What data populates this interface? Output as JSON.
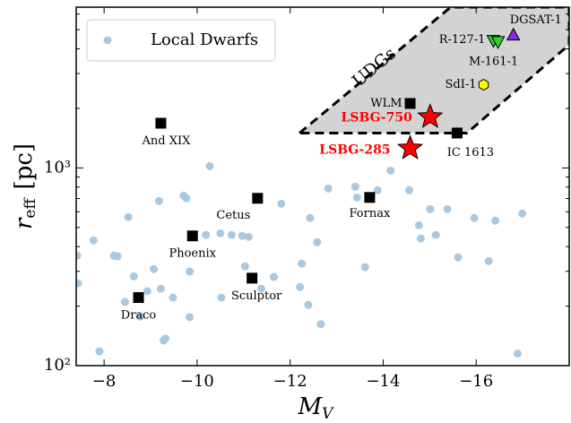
{
  "chart_data": {
    "type": "scatter",
    "xlabel": {
      "symbol": "M",
      "subscript": "V"
    },
    "ylabel": {
      "symbol": "r",
      "subscript": "eff",
      "unit": "[pc]"
    },
    "xlim": [
      -7.4,
      -18.0
    ],
    "ylim": [
      100,
      6500
    ],
    "yscale": "log",
    "xticks": [
      {
        "value": -8,
        "label": "−8"
      },
      {
        "value": -10,
        "label": "−10"
      },
      {
        "value": -12,
        "label": "−12"
      },
      {
        "value": -14,
        "label": "−14"
      },
      {
        "value": -16,
        "label": "−16"
      }
    ],
    "yticks": [
      {
        "value": 100,
        "label": "10²"
      },
      {
        "value": 1000,
        "label": "10³"
      }
    ],
    "yminor_ticks": [
      200,
      300,
      400,
      500,
      600,
      700,
      800,
      900,
      2000,
      3000,
      4000,
      5000,
      6000
    ],
    "legend": "upper left",
    "series": [
      {
        "name": "Local Dwarfs",
        "color": "#a9c9e2",
        "x": [
          -7.42,
          -7.44,
          -7.77,
          -7.9,
          -8.21,
          -8.29,
          -8.52,
          -8.64,
          -8.45,
          -8.78,
          -8.93,
          -9.07,
          -9.22,
          -9.28,
          -9.18,
          -9.48,
          -9.32,
          -9.77,
          -9.84,
          -9.71,
          -9.84,
          -10.19,
          -10.27,
          -10.5,
          -10.74,
          -10.52,
          -10.97,
          -11.11,
          -11.03,
          -11.38,
          -11.65,
          -11.81,
          -12.21,
          -12.25,
          -12.43,
          -12.39,
          -12.66,
          -12.58,
          -12.82,
          -13.4,
          -13.44,
          -13.61,
          -13.88,
          -14.16,
          -14.56,
          -14.77,
          -14.81,
          -15.01,
          -15.13,
          -15.38,
          -15.61,
          -15.96,
          -16.27,
          -16.41,
          -16.89,
          -16.99
        ],
        "values": [
          360,
          261,
          430,
          118,
          360,
          357,
          564,
          283,
          210,
          177,
          238,
          308,
          245,
          134,
          680,
          221,
          137,
          702,
          176,
          724,
          299,
          458,
          1021,
          467,
          458,
          221,
          453,
          448,
          318,
          245,
          281,
          659,
          250,
          328,
          558,
          203,
          162,
          421,
          787,
          804,
          709,
          315,
          771,
          969,
          771,
          513,
          439,
          619,
          458,
          619,
          353,
          558,
          338,
          541,
          115,
          588
        ]
      }
    ],
    "region": {
      "label": "UDGs",
      "color": "#d3d3d3",
      "x": [
        -12.2,
        -15.45,
        -18.0,
        -18.0,
        -15.8
      ],
      "y": [
        1500,
        6500,
        6500,
        4200,
        1500
      ]
    },
    "annotations": [
      {
        "label": "And XIX",
        "x": -9.22,
        "y": 1683,
        "marker": "square",
        "color": "#000000"
      },
      {
        "label": "Phoenix",
        "x": -9.9,
        "y": 453,
        "marker": "square",
        "color": "#000000"
      },
      {
        "label": "Draco",
        "x": -8.74,
        "y": 221,
        "marker": "square",
        "color": "#000000"
      },
      {
        "label": "Sculptor",
        "x": -11.18,
        "y": 277,
        "marker": "square",
        "color": "#000000"
      },
      {
        "label": "Cetus",
        "x": -11.3,
        "y": 702,
        "marker": "square",
        "color": "#000000"
      },
      {
        "label": "Fornax",
        "x": -13.71,
        "y": 709,
        "marker": "square",
        "color": "#000000"
      },
      {
        "label": "WLM",
        "x": -14.58,
        "y": 2118,
        "marker": "square",
        "color": "#000000"
      },
      {
        "label": "IC 1613",
        "x": -15.59,
        "y": 1501,
        "marker": "square",
        "color": "#000000"
      },
      {
        "label": "LSBG-750",
        "x": -15.01,
        "y": 1811,
        "marker": "star",
        "color": "#ff0000"
      },
      {
        "label": "LSBG-285",
        "x": -14.58,
        "y": 1257,
        "marker": "star",
        "color": "#ff0000"
      },
      {
        "label": "DGSAT-1",
        "x": -16.8,
        "y": 4722,
        "marker": "triangle-up",
        "color": "#8a2be2"
      },
      {
        "label": "R-127-1",
        "x": -16.37,
        "y": 4390,
        "marker": "triangle-down",
        "color": "#32cd32"
      },
      {
        "label": "M-161-1",
        "x": -16.47,
        "y": 4330,
        "marker": "triangle-down",
        "color": "#32cd32"
      },
      {
        "label": "SdI-1",
        "x": -16.16,
        "y": 2634,
        "marker": "hexagon",
        "color": "#ffff00"
      }
    ]
  }
}
